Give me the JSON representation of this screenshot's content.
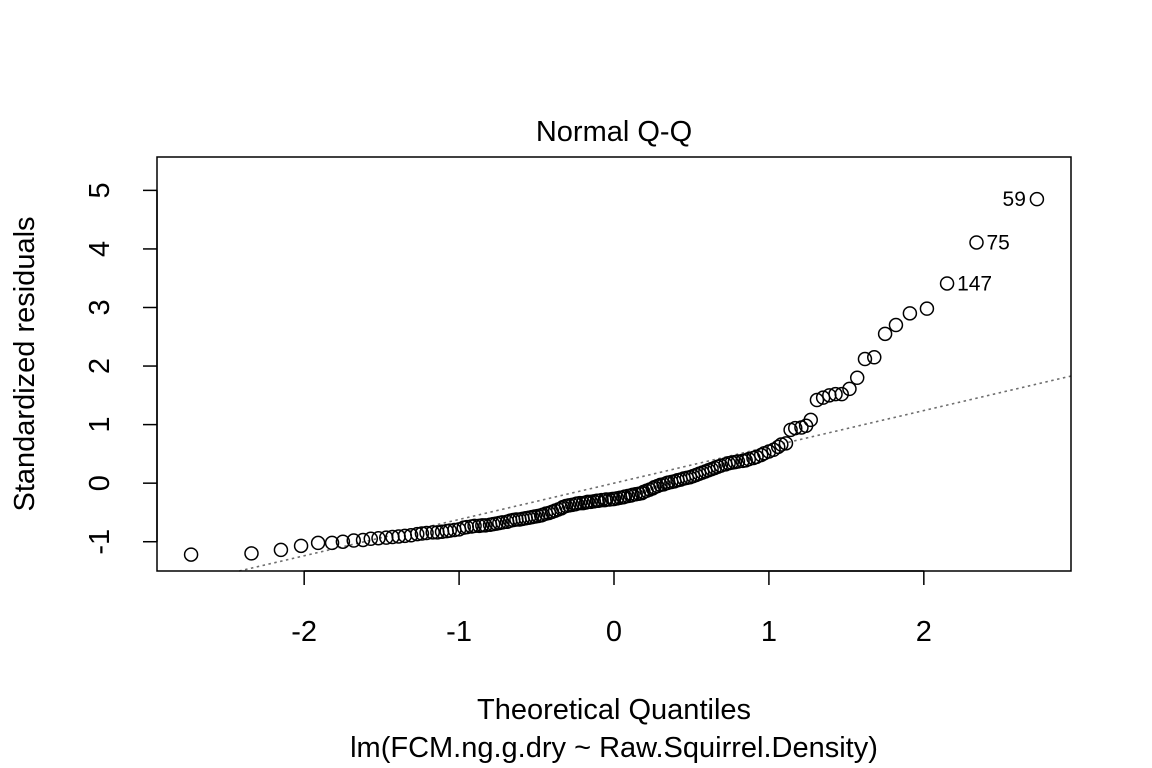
{
  "chart_data": {
    "type": "scatter",
    "title": "Normal Q-Q",
    "xlabel": "Theoretical Quantiles",
    "ylabel": "Standardized residuals",
    "subtitle": "lm(FCM.ng.g.dry ~ Raw.Squirrel.Density)",
    "xlim": [
      -2.95,
      2.95
    ],
    "ylim": [
      -1.5,
      5.57
    ],
    "x_ticks": [
      -2,
      -1,
      0,
      1,
      2
    ],
    "x_tick_labels": [
      "-2",
      "-1",
      "0",
      "1",
      "2"
    ],
    "y_ticks": [
      -1,
      0,
      1,
      2,
      3,
      4,
      5
    ],
    "y_tick_labels": [
      "-1",
      "0",
      "1",
      "2",
      "3",
      "4",
      "5"
    ],
    "grid": false,
    "reference_line": {
      "style": "dotted",
      "color": "#6e6e6e",
      "intercept": 0.0,
      "slope": 0.62
    },
    "labeled_points": [
      {
        "label": "59",
        "x": 2.73,
        "y": 4.85,
        "side": "left"
      },
      {
        "label": "75",
        "x": 2.34,
        "y": 4.11,
        "side": "right"
      },
      {
        "label": "147",
        "x": 2.15,
        "y": 3.41,
        "side": "right"
      }
    ],
    "points": [
      [
        -2.73,
        -1.22
      ],
      [
        -2.34,
        -1.2
      ],
      [
        -2.15,
        -1.14
      ],
      [
        -2.02,
        -1.07
      ],
      [
        -1.91,
        -1.02
      ],
      [
        -1.82,
        -1.02
      ],
      [
        -1.75,
        -1.0
      ],
      [
        -1.68,
        -0.98
      ],
      [
        -1.62,
        -0.97
      ],
      [
        -1.57,
        -0.95
      ],
      [
        -1.52,
        -0.94
      ],
      [
        -1.47,
        -0.93
      ],
      [
        -1.43,
        -0.92
      ],
      [
        -1.39,
        -0.91
      ],
      [
        -1.35,
        -0.9
      ],
      [
        -1.31,
        -0.89
      ],
      [
        -1.27,
        -0.87
      ],
      [
        -1.24,
        -0.86
      ],
      [
        -1.21,
        -0.85
      ],
      [
        -1.17,
        -0.84
      ],
      [
        -1.14,
        -0.84
      ],
      [
        -1.11,
        -0.83
      ],
      [
        -1.08,
        -0.82
      ],
      [
        -1.06,
        -0.81
      ],
      [
        -1.03,
        -0.8
      ],
      [
        -1.0,
        -0.79
      ],
      [
        -0.97,
        -0.76
      ],
      [
        -0.95,
        -0.75
      ],
      [
        -0.92,
        -0.74
      ],
      [
        -0.9,
        -0.73
      ],
      [
        -0.87,
        -0.73
      ],
      [
        -0.85,
        -0.72
      ],
      [
        -0.83,
        -0.72
      ],
      [
        -0.8,
        -0.71
      ],
      [
        -0.78,
        -0.7
      ],
      [
        -0.76,
        -0.69
      ],
      [
        -0.74,
        -0.68
      ],
      [
        -0.72,
        -0.67
      ],
      [
        -0.69,
        -0.66
      ],
      [
        -0.67,
        -0.64
      ],
      [
        -0.65,
        -0.63
      ],
      [
        -0.63,
        -0.62
      ],
      [
        -0.61,
        -0.62
      ],
      [
        -0.59,
        -0.61
      ],
      [
        -0.57,
        -0.6
      ],
      [
        -0.55,
        -0.59
      ],
      [
        -0.53,
        -0.58
      ],
      [
        -0.51,
        -0.57
      ],
      [
        -0.49,
        -0.56
      ],
      [
        -0.47,
        -0.55
      ],
      [
        -0.46,
        -0.54
      ],
      [
        -0.44,
        -0.52
      ],
      [
        -0.42,
        -0.51
      ],
      [
        -0.4,
        -0.49
      ],
      [
        -0.38,
        -0.47
      ],
      [
        -0.36,
        -0.45
      ],
      [
        -0.34,
        -0.43
      ],
      [
        -0.33,
        -0.41
      ],
      [
        -0.31,
        -0.39
      ],
      [
        -0.29,
        -0.38
      ],
      [
        -0.27,
        -0.37
      ],
      [
        -0.25,
        -0.36
      ],
      [
        -0.24,
        -0.35
      ],
      [
        -0.22,
        -0.34
      ],
      [
        -0.2,
        -0.34
      ],
      [
        -0.18,
        -0.33
      ],
      [
        -0.17,
        -0.32
      ],
      [
        -0.15,
        -0.32
      ],
      [
        -0.13,
        -0.31
      ],
      [
        -0.11,
        -0.3
      ],
      [
        -0.1,
        -0.3
      ],
      [
        -0.08,
        -0.29
      ],
      [
        -0.06,
        -0.29
      ],
      [
        -0.05,
        -0.28
      ],
      [
        -0.03,
        -0.28
      ],
      [
        -0.01,
        -0.27
      ],
      [
        0.0,
        -0.27
      ],
      [
        0.02,
        -0.26
      ],
      [
        0.04,
        -0.25
      ],
      [
        0.06,
        -0.24
      ],
      [
        0.07,
        -0.23
      ],
      [
        0.09,
        -0.22
      ],
      [
        0.11,
        -0.21
      ],
      [
        0.12,
        -0.2
      ],
      [
        0.14,
        -0.19
      ],
      [
        0.16,
        -0.18
      ],
      [
        0.18,
        -0.17
      ],
      [
        0.19,
        -0.15
      ],
      [
        0.21,
        -0.13
      ],
      [
        0.23,
        -0.11
      ],
      [
        0.25,
        -0.09
      ],
      [
        0.26,
        -0.07
      ],
      [
        0.28,
        -0.05
      ],
      [
        0.3,
        -0.03
      ],
      [
        0.32,
        -0.02
      ],
      [
        0.34,
        0.0
      ],
      [
        0.35,
        0.01
      ],
      [
        0.37,
        0.02
      ],
      [
        0.39,
        0.03
      ],
      [
        0.41,
        0.05
      ],
      [
        0.43,
        0.06
      ],
      [
        0.45,
        0.08
      ],
      [
        0.47,
        0.09
      ],
      [
        0.49,
        0.1
      ],
      [
        0.51,
        0.12
      ],
      [
        0.53,
        0.14
      ],
      [
        0.55,
        0.16
      ],
      [
        0.57,
        0.18
      ],
      [
        0.59,
        0.2
      ],
      [
        0.61,
        0.22
      ],
      [
        0.63,
        0.24
      ],
      [
        0.65,
        0.26
      ],
      [
        0.67,
        0.28
      ],
      [
        0.69,
        0.3
      ],
      [
        0.72,
        0.32
      ],
      [
        0.74,
        0.34
      ],
      [
        0.76,
        0.35
      ],
      [
        0.78,
        0.36
      ],
      [
        0.8,
        0.37
      ],
      [
        0.83,
        0.38
      ],
      [
        0.85,
        0.39
      ],
      [
        0.87,
        0.41
      ],
      [
        0.9,
        0.43
      ],
      [
        0.92,
        0.45
      ],
      [
        0.95,
        0.48
      ],
      [
        0.97,
        0.51
      ],
      [
        1.0,
        0.54
      ],
      [
        1.03,
        0.57
      ],
      [
        1.06,
        0.62
      ],
      [
        1.08,
        0.66
      ],
      [
        1.11,
        0.68
      ],
      [
        1.14,
        0.91
      ],
      [
        1.17,
        0.94
      ],
      [
        1.21,
        0.95
      ],
      [
        1.24,
        0.98
      ],
      [
        1.27,
        1.08
      ],
      [
        1.31,
        1.42
      ],
      [
        1.35,
        1.46
      ],
      [
        1.39,
        1.5
      ],
      [
        1.43,
        1.52
      ],
      [
        1.47,
        1.52
      ],
      [
        1.52,
        1.61
      ],
      [
        1.57,
        1.8
      ],
      [
        1.62,
        2.12
      ],
      [
        1.68,
        2.15
      ],
      [
        1.75,
        2.55
      ],
      [
        1.82,
        2.7
      ],
      [
        1.91,
        2.9
      ],
      [
        2.02,
        2.98
      ],
      [
        2.15,
        3.41
      ],
      [
        2.34,
        4.11
      ],
      [
        2.73,
        4.85
      ]
    ]
  }
}
